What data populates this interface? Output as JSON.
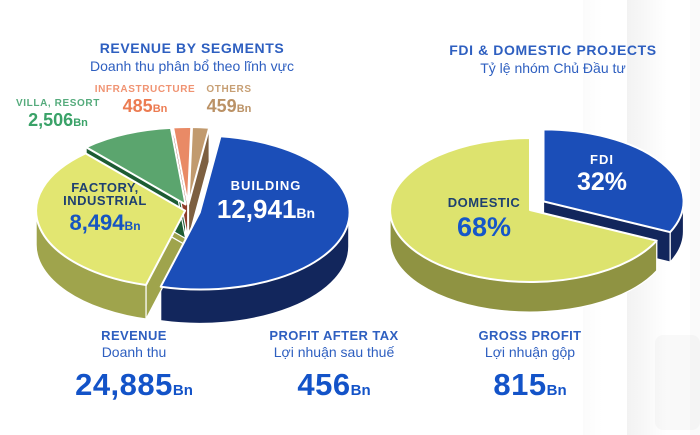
{
  "chart_data": [
    {
      "type": "pie",
      "title": "REVENUE BY SEGMENTS",
      "subtitle": "Doanh thu phân bổ theo lĩnh vực",
      "unit": "Bn",
      "total": 24885,
      "slices": [
        {
          "label": "BUILDING",
          "label_lines": [
            "BUILDING"
          ],
          "value": 12941,
          "display": "12,941",
          "unit": "Bn",
          "color": "#1b4eb8",
          "side_color": "#12265c",
          "label_color": "#ffffff",
          "value_color": "#ffffff"
        },
        {
          "label": "FACTORY, INDUSTRIAL",
          "label_lines": [
            "FACTORY,",
            "INDUSTRIAL"
          ],
          "value": 8494,
          "display": "8,494",
          "unit": "Bn",
          "color": "#e2e671",
          "side_color": "#9fa44c",
          "label_color": "#1e4070",
          "value_color": "#1655c1"
        },
        {
          "label": "VILLA, RESORT",
          "label_lines": [
            "VILLA, RESORT"
          ],
          "value": 2506,
          "display": "2,506",
          "unit": "Bn",
          "color": "#5ba56e",
          "side_color": "#1d5c33",
          "label_color": "#55ab7c",
          "value_color": "#3aa268"
        },
        {
          "label": "INFRASTRUCTURE",
          "label_lines": [
            "INFRASTRUCTURE"
          ],
          "value": 485,
          "display": "485",
          "unit": "Bn",
          "color": "#e98a66",
          "side_color": "#8e3c28",
          "label_color": "#f09372",
          "value_color": "#ec7c52"
        },
        {
          "label": "OTHERS",
          "label_lines": [
            "OTHERS"
          ],
          "value": 459,
          "display": "459",
          "unit": "Bn",
          "color": "#c19a6e",
          "side_color": "#7d5f40",
          "label_color": "#c79f74",
          "value_color": "#bb9266"
        }
      ]
    },
    {
      "type": "pie",
      "title": "FDI & DOMESTIC PROJECTS",
      "subtitle": "Tỷ lệ nhóm Chủ Đầu tư",
      "unit": "%",
      "slices": [
        {
          "label": "FDI",
          "label_lines": [
            "FDI"
          ],
          "value": 32,
          "display": "32%",
          "unit": "",
          "color": "#1b4eb8",
          "side_color": "#12265c",
          "label_color": "#ffffff",
          "value_color": "#ffffff"
        },
        {
          "label": "DOMESTIC",
          "label_lines": [
            "DOMESTIC"
          ],
          "value": 68,
          "display": "68%",
          "unit": "",
          "color": "#dde36e",
          "side_color": "#8f9342",
          "label_color": "#1e4070",
          "value_color": "#1557c8"
        }
      ]
    }
  ],
  "stats": [
    {
      "label_en": "REVENUE",
      "label_vi": "Doanh thu",
      "value": "24,885",
      "unit": "Bn"
    },
    {
      "label_en": "PROFIT AFTER TAX",
      "label_vi": "Lợi nhuận sau thuế",
      "value": "456",
      "unit": "Bn"
    },
    {
      "label_en": "GROSS PROFIT",
      "label_vi": "Lợi nhuận gộp",
      "value": "815",
      "unit": "Bn"
    }
  ],
  "colors": {
    "title_blue": "#2e5fc0",
    "value_blue": "#1353c8"
  }
}
